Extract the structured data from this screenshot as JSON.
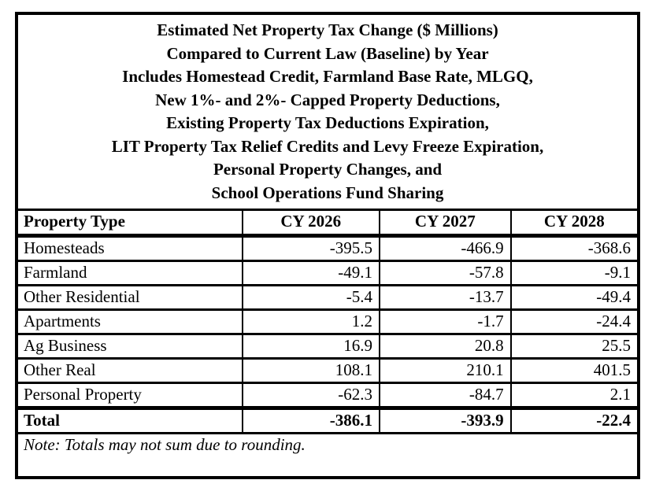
{
  "title": {
    "lines": [
      "Estimated Net Property Tax Change ($ Millions)",
      "Compared to Current Law (Baseline) by Year",
      "Includes Homestead Credit, Farmland Base Rate, MLGQ,",
      "New 1%- and 2%- Capped Property Deductions,",
      "Existing Property Tax Deductions Expiration,",
      "LIT Property Tax Relief Credits and Levy Freeze Expiration,",
      "Personal Property Changes, and",
      "School Operations Fund Sharing"
    ]
  },
  "table": {
    "header": {
      "property_type": "Property Type",
      "years": [
        "CY 2026",
        "CY 2027",
        "CY 2028"
      ]
    },
    "rows": [
      {
        "label": "Homesteads",
        "values": [
          "-395.5",
          "-466.9",
          "-368.6"
        ]
      },
      {
        "label": "Farmland",
        "values": [
          "-49.1",
          "-57.8",
          "-9.1"
        ]
      },
      {
        "label": "Other Residential",
        "values": [
          "-5.4",
          "-13.7",
          "-49.4"
        ]
      },
      {
        "label": "Apartments",
        "values": [
          "1.2",
          "-1.7",
          "-24.4"
        ]
      },
      {
        "label": "Ag Business",
        "values": [
          "16.9",
          "20.8",
          "25.5"
        ]
      },
      {
        "label": "Other Real",
        "values": [
          "108.1",
          "210.1",
          "401.5"
        ]
      },
      {
        "label": "Personal Property",
        "values": [
          "-62.3",
          "-84.7",
          "2.1"
        ]
      }
    ],
    "total": {
      "label": "Total",
      "values": [
        "-386.1",
        "-393.9",
        "-22.4"
      ]
    },
    "note": "Note: Totals may not sum due to rounding."
  },
  "colors": {
    "border": "#000000",
    "text": "#000000",
    "background": "#ffffff"
  }
}
